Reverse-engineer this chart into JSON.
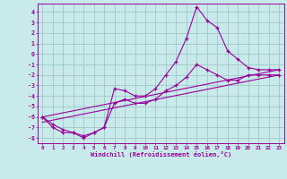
{
  "xlabel": "Windchill (Refroidissement éolien,°C)",
  "xlim": [
    -0.5,
    23.5
  ],
  "ylim": [
    -8.5,
    4.8
  ],
  "yticks": [
    4,
    3,
    2,
    1,
    0,
    -1,
    -2,
    -3,
    -4,
    -5,
    -6,
    -7,
    -8
  ],
  "xticks": [
    0,
    1,
    2,
    3,
    4,
    5,
    6,
    7,
    8,
    9,
    10,
    11,
    12,
    13,
    14,
    15,
    16,
    17,
    18,
    19,
    20,
    21,
    22,
    23
  ],
  "bg_color": "#c8eaea",
  "grid_color": "#a0c8c8",
  "line_color": "#990099",
  "line1_x": [
    0,
    1,
    2,
    3,
    4,
    5,
    6,
    7,
    8,
    9,
    10,
    11,
    12,
    13,
    14,
    15,
    16,
    17,
    18,
    19,
    20,
    21,
    22,
    23
  ],
  "line1_y": [
    -6.0,
    -7.0,
    -7.5,
    -7.5,
    -8.0,
    -7.5,
    -7.0,
    -3.3,
    -3.5,
    -4.0,
    -4.0,
    -3.3,
    -2.0,
    -0.7,
    1.5,
    4.5,
    3.2,
    2.5,
    0.3,
    -0.5,
    -1.3,
    -1.5,
    -1.5,
    -1.5
  ],
  "line2_x": [
    0,
    1,
    2,
    3,
    4,
    5,
    6,
    7,
    8,
    9,
    10,
    11,
    12,
    13,
    14,
    15,
    16,
    17,
    18,
    19,
    20,
    21,
    22,
    23
  ],
  "line2_y": [
    -6.0,
    -6.7,
    -7.2,
    -7.5,
    -7.8,
    -7.5,
    -7.0,
    -4.7,
    -4.3,
    -4.7,
    -4.7,
    -4.3,
    -3.5,
    -3.0,
    -2.2,
    -1.0,
    -1.5,
    -2.0,
    -2.5,
    -2.5,
    -2.0,
    -2.0,
    -2.0,
    -2.0
  ],
  "line3_x": [
    0,
    23
  ],
  "line3_y": [
    -6.0,
    -1.5
  ],
  "line4_x": [
    0,
    23
  ],
  "line4_y": [
    -6.5,
    -2.0
  ]
}
